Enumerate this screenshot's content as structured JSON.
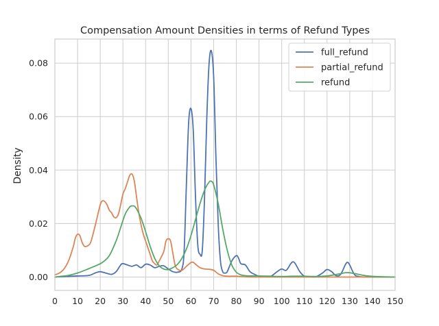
{
  "chart_data": {
    "type": "line",
    "title": "Compensation Amount Densities in terms of Refund Types",
    "xlabel": "",
    "ylabel": "Density",
    "xlim": [
      0,
      150
    ],
    "ylim": [
      -0.005,
      0.089
    ],
    "x_ticks": [
      0,
      10,
      20,
      30,
      40,
      50,
      60,
      70,
      80,
      90,
      100,
      110,
      120,
      130,
      140,
      150
    ],
    "x_tick_labels": [
      "0",
      "10",
      "20",
      "30",
      "40",
      "50",
      "60",
      "70",
      "80",
      "90",
      "100",
      "110",
      "120",
      "130",
      "140",
      "150"
    ],
    "y_ticks": [
      0.0,
      0.02,
      0.04,
      0.06,
      0.08
    ],
    "y_tick_labels": [
      "0.00",
      "0.02",
      "0.04",
      "0.06",
      "0.08"
    ],
    "grid": true,
    "legend_position": "top-right",
    "series": [
      {
        "name": "full_refund",
        "color": "#4c72b0",
        "points": [
          [
            0,
            0.0
          ],
          [
            5,
            0.0002
          ],
          [
            10,
            0.0004
          ],
          [
            15,
            0.0006
          ],
          [
            18,
            0.0016
          ],
          [
            20,
            0.002
          ],
          [
            22,
            0.0016
          ],
          [
            25,
            0.001
          ],
          [
            27,
            0.002
          ],
          [
            29,
            0.0045
          ],
          [
            30,
            0.005
          ],
          [
            32,
            0.0045
          ],
          [
            34,
            0.004
          ],
          [
            36,
            0.0045
          ],
          [
            38,
            0.0035
          ],
          [
            40,
            0.0048
          ],
          [
            42,
            0.0045
          ],
          [
            44,
            0.0035
          ],
          [
            46,
            0.004
          ],
          [
            48,
            0.0042
          ],
          [
            50,
            0.003
          ],
          [
            52,
            0.002
          ],
          [
            54,
            0.0018
          ],
          [
            56,
            0.003
          ],
          [
            57,
            0.01
          ],
          [
            58,
            0.035
          ],
          [
            59,
            0.058
          ],
          [
            60,
            0.063
          ],
          [
            61,
            0.055
          ],
          [
            62,
            0.03
          ],
          [
            63,
            0.012
          ],
          [
            64,
            0.0085
          ],
          [
            65,
            0.01
          ],
          [
            66,
            0.03
          ],
          [
            67,
            0.06
          ],
          [
            68,
            0.08
          ],
          [
            69,
            0.0845
          ],
          [
            70,
            0.075
          ],
          [
            71,
            0.045
          ],
          [
            72,
            0.02
          ],
          [
            73,
            0.006
          ],
          [
            74,
            0.002
          ],
          [
            75,
            0.0015
          ],
          [
            76,
            0.002
          ],
          [
            78,
            0.006
          ],
          [
            80,
            0.008
          ],
          [
            81,
            0.007
          ],
          [
            82,
            0.005
          ],
          [
            84,
            0.0045
          ],
          [
            86,
            0.002
          ],
          [
            88,
            0.001
          ],
          [
            90,
            0.0003
          ],
          [
            92,
            0.0002
          ],
          [
            95,
            0.0002
          ],
          [
            98,
            0.002
          ],
          [
            100,
            0.003
          ],
          [
            102,
            0.0025
          ],
          [
            104,
            0.005
          ],
          [
            105,
            0.0057
          ],
          [
            106,
            0.005
          ],
          [
            108,
            0.002
          ],
          [
            110,
            0.0003
          ],
          [
            112,
            0.0001
          ],
          [
            115,
            0.0001
          ],
          [
            118,
            0.0015
          ],
          [
            120,
            0.0028
          ],
          [
            122,
            0.002
          ],
          [
            124,
            0.0005
          ],
          [
            126,
            0.001
          ],
          [
            128,
            0.0045
          ],
          [
            129,
            0.0055
          ],
          [
            130,
            0.0045
          ],
          [
            132,
            0.001
          ],
          [
            134,
            0.0002
          ],
          [
            138,
            0.0
          ],
          [
            145,
            0.0
          ],
          [
            150,
            0.0
          ]
        ]
      },
      {
        "name": "partial_refund",
        "color": "#dd8452",
        "points": [
          [
            0,
            0.0008
          ],
          [
            2,
            0.0015
          ],
          [
            4,
            0.003
          ],
          [
            6,
            0.006
          ],
          [
            8,
            0.011
          ],
          [
            9,
            0.0145
          ],
          [
            10,
            0.016
          ],
          [
            11,
            0.0155
          ],
          [
            12,
            0.013
          ],
          [
            13,
            0.0115
          ],
          [
            14,
            0.0115
          ],
          [
            15,
            0.012
          ],
          [
            16,
            0.0135
          ],
          [
            18,
            0.02
          ],
          [
            20,
            0.027
          ],
          [
            21,
            0.0285
          ],
          [
            22,
            0.0282
          ],
          [
            23,
            0.027
          ],
          [
            24,
            0.025
          ],
          [
            25,
            0.024
          ],
          [
            26,
            0.0225
          ],
          [
            27,
            0.0222
          ],
          [
            28,
            0.0235
          ],
          [
            29,
            0.027
          ],
          [
            30,
            0.031
          ],
          [
            31,
            0.033
          ],
          [
            32,
            0.0355
          ],
          [
            33,
            0.038
          ],
          [
            34,
            0.0385
          ],
          [
            35,
            0.036
          ],
          [
            36,
            0.03
          ],
          [
            37,
            0.024
          ],
          [
            38,
            0.0195
          ],
          [
            39,
            0.016
          ],
          [
            40,
            0.0135
          ],
          [
            41,
            0.011
          ],
          [
            42,
            0.0085
          ],
          [
            43,
            0.006
          ],
          [
            44,
            0.005
          ],
          [
            45,
            0.0045
          ],
          [
            46,
            0.006
          ],
          [
            48,
            0.0095
          ],
          [
            49,
            0.0135
          ],
          [
            50,
            0.0143
          ],
          [
            51,
            0.0135
          ],
          [
            52,
            0.009
          ],
          [
            53,
            0.0045
          ],
          [
            54,
            0.003
          ],
          [
            56,
            0.0025
          ],
          [
            58,
            0.004
          ],
          [
            60,
            0.0054
          ],
          [
            61,
            0.0055
          ],
          [
            62,
            0.0048
          ],
          [
            64,
            0.0035
          ],
          [
            66,
            0.003
          ],
          [
            68,
            0.0029
          ],
          [
            70,
            0.0025
          ],
          [
            72,
            0.0012
          ],
          [
            74,
            0.0005
          ],
          [
            76,
            0.0003
          ],
          [
            80,
            0.0003
          ],
          [
            83,
            0.0001
          ],
          [
            90,
            0.0
          ],
          [
            100,
            0.0
          ],
          [
            110,
            0.0
          ],
          [
            120,
            0.0
          ],
          [
            130,
            0.0
          ],
          [
            140,
            0.0
          ],
          [
            150,
            0.0
          ]
        ]
      },
      {
        "name": "refund",
        "color": "#55a868",
        "points": [
          [
            0,
            0.0
          ],
          [
            3,
            0.0003
          ],
          [
            6,
            0.0006
          ],
          [
            10,
            0.0015
          ],
          [
            14,
            0.0028
          ],
          [
            18,
            0.0042
          ],
          [
            21,
            0.0055
          ],
          [
            24,
            0.008
          ],
          [
            27,
            0.0135
          ],
          [
            29,
            0.0185
          ],
          [
            31,
            0.0235
          ],
          [
            33,
            0.0262
          ],
          [
            34,
            0.0266
          ],
          [
            35,
            0.0265
          ],
          [
            36,
            0.0255
          ],
          [
            38,
            0.022
          ],
          [
            40,
            0.017
          ],
          [
            42,
            0.0115
          ],
          [
            44,
            0.007
          ],
          [
            46,
            0.0042
          ],
          [
            48,
            0.003
          ],
          [
            50,
            0.0028
          ],
          [
            52,
            0.0035
          ],
          [
            54,
            0.0047
          ],
          [
            56,
            0.007
          ],
          [
            58,
            0.0105
          ],
          [
            60,
            0.0155
          ],
          [
            62,
            0.0215
          ],
          [
            64,
            0.0275
          ],
          [
            66,
            0.0325
          ],
          [
            68,
            0.0355
          ],
          [
            69,
            0.0358
          ],
          [
            70,
            0.0345
          ],
          [
            72,
            0.0275
          ],
          [
            74,
            0.018
          ],
          [
            76,
            0.01
          ],
          [
            78,
            0.0045
          ],
          [
            80,
            0.0018
          ],
          [
            82,
            0.0008
          ],
          [
            84,
            0.0005
          ],
          [
            86,
            0.0004
          ],
          [
            88,
            0.0004
          ],
          [
            90,
            0.0004
          ],
          [
            95,
            0.0003
          ],
          [
            100,
            0.0002
          ],
          [
            105,
            0.0003
          ],
          [
            110,
            0.0003
          ],
          [
            115,
            0.0002
          ],
          [
            120,
            0.0004
          ],
          [
            125,
            0.0011
          ],
          [
            128,
            0.0016
          ],
          [
            130,
            0.0016
          ],
          [
            132,
            0.0013
          ],
          [
            135,
            0.0008
          ],
          [
            138,
            0.0004
          ],
          [
            141,
            0.0002
          ],
          [
            145,
            0.0001
          ],
          [
            150,
            0.0
          ]
        ]
      }
    ]
  }
}
